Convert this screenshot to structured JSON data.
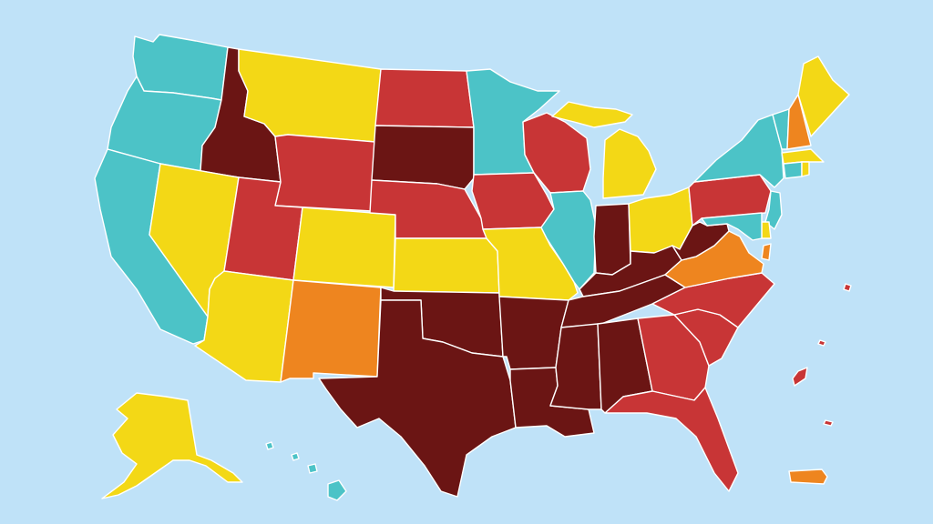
{
  "colors": {
    "background": "#bfe2f8",
    "teal": "#4cc3c7",
    "yellow": "#f3d816",
    "orange": "#ee851f",
    "red": "#c83536",
    "dark_red": "#6b1514",
    "border": "#ffffff"
  },
  "states": [
    {
      "code": "WA",
      "category": "teal"
    },
    {
      "code": "OR",
      "category": "teal"
    },
    {
      "code": "CA",
      "category": "teal"
    },
    {
      "code": "ID",
      "category": "dark_red"
    },
    {
      "code": "NV",
      "category": "yellow"
    },
    {
      "code": "MT",
      "category": "yellow"
    },
    {
      "code": "WY",
      "category": "red"
    },
    {
      "code": "UT",
      "category": "red"
    },
    {
      "code": "AZ",
      "category": "yellow"
    },
    {
      "code": "CO",
      "category": "yellow"
    },
    {
      "code": "NM",
      "category": "orange"
    },
    {
      "code": "ND",
      "category": "red"
    },
    {
      "code": "SD",
      "category": "dark_red"
    },
    {
      "code": "NE",
      "category": "red"
    },
    {
      "code": "KS",
      "category": "yellow"
    },
    {
      "code": "OK",
      "category": "dark_red"
    },
    {
      "code": "TX",
      "category": "dark_red"
    },
    {
      "code": "MN",
      "category": "teal"
    },
    {
      "code": "IA",
      "category": "red"
    },
    {
      "code": "MO",
      "category": "yellow"
    },
    {
      "code": "AR",
      "category": "dark_red"
    },
    {
      "code": "LA",
      "category": "dark_red"
    },
    {
      "code": "WI",
      "category": "red"
    },
    {
      "code": "IL",
      "category": "teal"
    },
    {
      "code": "MI",
      "category": "yellow"
    },
    {
      "code": "IN",
      "category": "dark_red"
    },
    {
      "code": "OH",
      "category": "yellow"
    },
    {
      "code": "KY",
      "category": "dark_red"
    },
    {
      "code": "TN",
      "category": "dark_red"
    },
    {
      "code": "MS",
      "category": "dark_red"
    },
    {
      "code": "AL",
      "category": "dark_red"
    },
    {
      "code": "GA",
      "category": "red"
    },
    {
      "code": "FL",
      "category": "red"
    },
    {
      "code": "SC",
      "category": "red"
    },
    {
      "code": "NC",
      "category": "red"
    },
    {
      "code": "VA",
      "category": "orange"
    },
    {
      "code": "WV",
      "category": "dark_red"
    },
    {
      "code": "PA",
      "category": "red"
    },
    {
      "code": "NY",
      "category": "teal"
    },
    {
      "code": "VT",
      "category": "teal"
    },
    {
      "code": "NH",
      "category": "orange"
    },
    {
      "code": "ME",
      "category": "yellow"
    },
    {
      "code": "MA",
      "category": "yellow"
    },
    {
      "code": "CT",
      "category": "teal"
    },
    {
      "code": "RI",
      "category": "yellow"
    },
    {
      "code": "NJ",
      "category": "teal"
    },
    {
      "code": "DE",
      "category": "yellow"
    },
    {
      "code": "MD",
      "category": "teal"
    },
    {
      "code": "DC",
      "category": "orange"
    },
    {
      "code": "AK",
      "category": "yellow"
    },
    {
      "code": "HI",
      "category": "teal"
    },
    {
      "code": "PR",
      "category": "orange"
    },
    {
      "code": "VI",
      "category": "red"
    }
  ]
}
